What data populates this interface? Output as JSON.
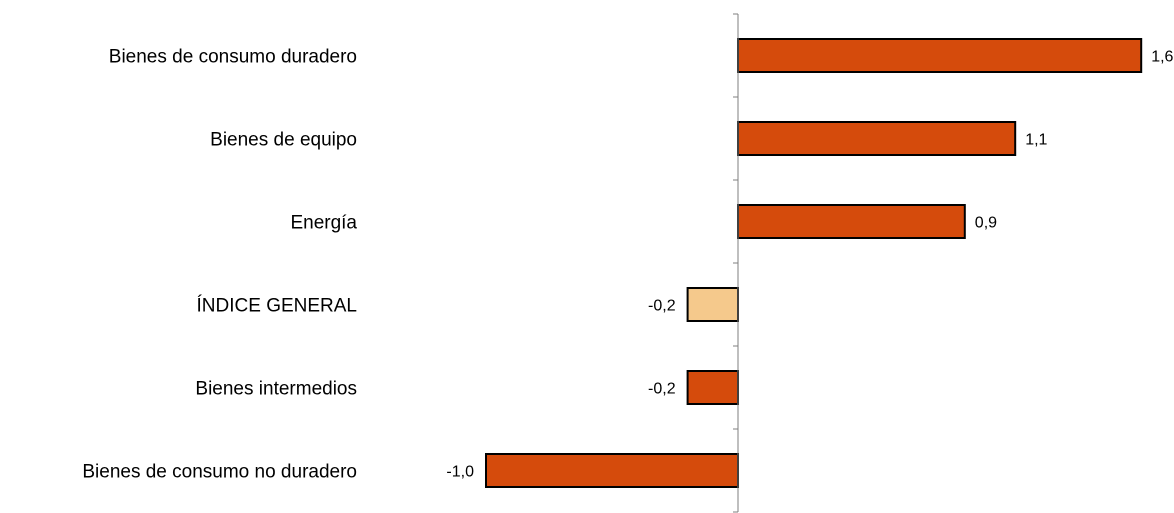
{
  "chart_data": {
    "type": "bar",
    "orientation": "horizontal",
    "title": "",
    "xlabel": "",
    "ylabel": "",
    "grid": false,
    "categories": [
      "Bienes de consumo duradero",
      "Bienes de equipo",
      "Energía",
      "ÍNDICE GENERAL",
      "Bienes intermedios",
      "Bienes de consumo no duradero"
    ],
    "values": [
      1.6,
      1.1,
      0.9,
      -0.2,
      -0.2,
      -1.0
    ],
    "value_labels": [
      "1,6",
      "1,1",
      "0,9",
      "-0,2",
      "-0,2",
      "-1,0"
    ],
    "bar_colors": [
      "#d54b0c",
      "#d54b0c",
      "#d54b0c",
      "#f5c98c",
      "#d54b0c",
      "#d54b0c"
    ]
  }
}
